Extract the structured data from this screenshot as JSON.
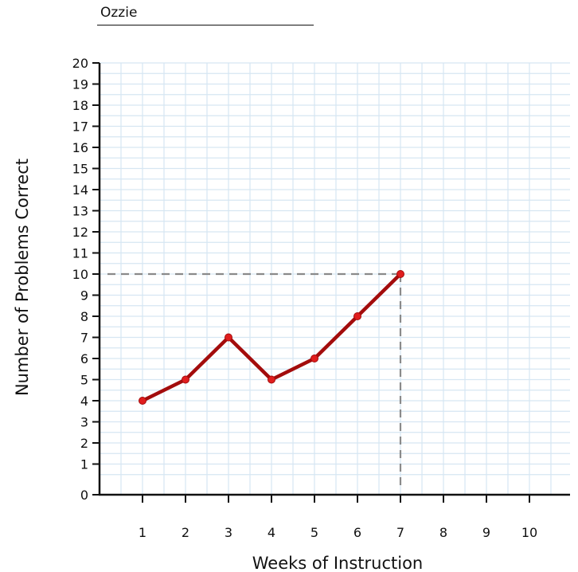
{
  "student": {
    "name": "Ozzie"
  },
  "chart_data": {
    "type": "line",
    "title": "",
    "xlabel": "Weeks of Instruction",
    "ylabel": "Number of Problems Correct",
    "x_ticks": [
      1,
      2,
      3,
      4,
      5,
      6,
      7,
      8,
      9,
      10
    ],
    "y_ticks": [
      0,
      1,
      2,
      3,
      4,
      5,
      6,
      7,
      8,
      9,
      10,
      11,
      12,
      13,
      14,
      15,
      16,
      17,
      18,
      19,
      20
    ],
    "xlim": [
      0,
      10.8
    ],
    "ylim": [
      -0.5,
      20
    ],
    "grid": true,
    "series": [
      {
        "x": [
          1,
          2,
          3,
          4,
          5,
          6,
          7
        ],
        "values": [
          4,
          5,
          7,
          5,
          6,
          8,
          10
        ]
      }
    ],
    "reference": {
      "x": 7,
      "y": 10,
      "style": "dashed"
    },
    "colors": {
      "line": "#a30c0c",
      "marker": "#e01e1e",
      "grid": "#d6e6f2",
      "reference": "#8a8a8a"
    }
  }
}
